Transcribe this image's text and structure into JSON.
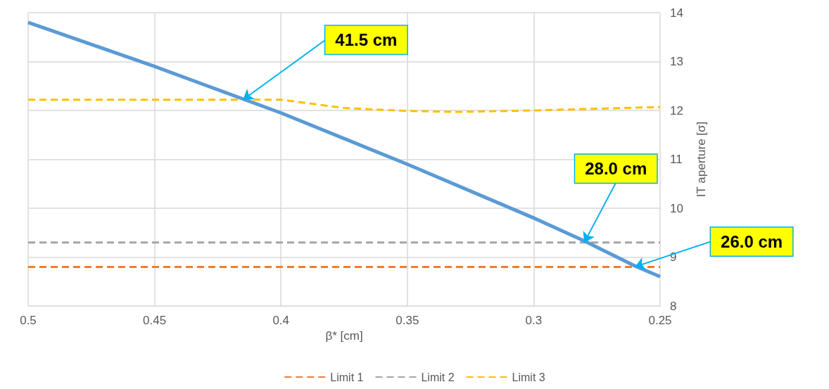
{
  "chart_data": {
    "type": "line",
    "xlabel": "β* [cm]",
    "ylabel": "IT aperture [σ]",
    "xlim": [
      0.5,
      0.25
    ],
    "xticks": [
      0.5,
      0.45,
      0.4,
      0.35,
      0.3,
      0.25
    ],
    "ylim": [
      8,
      14
    ],
    "yticks": [
      8,
      9,
      10,
      11,
      12,
      13,
      14
    ],
    "grid": true,
    "legend": "bottom",
    "marker": "none",
    "series": [
      {
        "name": "Limit 1",
        "color": "#ed7d31",
        "line_style": "dashed",
        "x": [
          0.5,
          0.25
        ],
        "values": [
          8.8,
          8.8
        ]
      },
      {
        "name": "Limit 2",
        "color": "#a5a5a5",
        "line_style": "dashed",
        "x": [
          0.5,
          0.25
        ],
        "values": [
          9.3,
          9.3
        ]
      },
      {
        "name": "Limit 3",
        "color": "#ffc000",
        "line_style": "dashed",
        "x": [
          0.5,
          0.45,
          0.4,
          0.375,
          0.35,
          0.33,
          0.3,
          0.25
        ],
        "values": [
          12.22,
          12.22,
          12.22,
          12.05,
          11.99,
          11.97,
          12.0,
          12.07
        ]
      },
      {
        "color": "#5b9bd5",
        "line_style": "solid",
        "x": [
          0.5,
          0.45,
          0.4,
          0.35,
          0.3,
          0.28,
          0.26,
          0.25
        ],
        "values": [
          13.8,
          12.9,
          11.95,
          10.9,
          9.8,
          9.33,
          8.82,
          8.6
        ]
      }
    ],
    "annotations": [
      {
        "text": "41.5 cm",
        "x": 0.415,
        "y": 12.22
      },
      {
        "text": "28.0 cm",
        "x": 0.28,
        "y": 9.3
      },
      {
        "text": "26.0 cm",
        "x": 0.26,
        "y": 8.8
      }
    ]
  }
}
